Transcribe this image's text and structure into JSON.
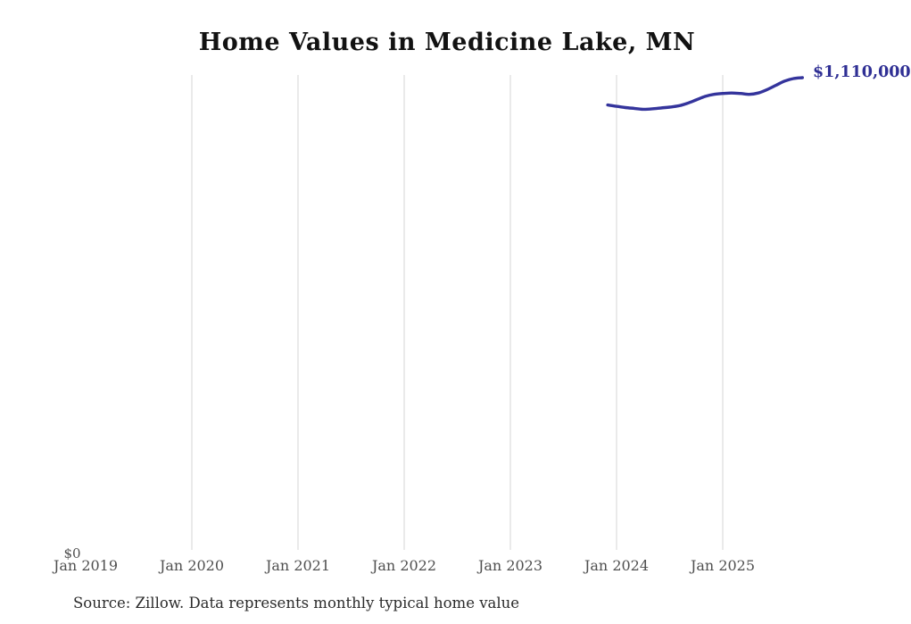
{
  "title": "Home Values in Medicine Lake, MN",
  "y_zero_label": "$0",
  "end_label": "$1,110,000",
  "source_note": "Source: Zillow. Data represents monthly typical home value",
  "colors": {
    "line": "#34349c",
    "end_label": "#2f2f94",
    "gridline": "#d5d5d5",
    "axis_text": "#4f4f4f",
    "title_text": "#121212",
    "source_text": "#2b2b2b"
  },
  "x_axis": {
    "tick_labels": [
      "Jan 2019",
      "Jan 2020",
      "Jan 2021",
      "Jan 2022",
      "Jan 2023",
      "Jan 2024",
      "Jan 2025"
    ]
  },
  "chart_data": {
    "type": "line",
    "title": "Home Values in Medicine Lake, MN",
    "xlabel": "",
    "ylabel": "",
    "x_tick_labels": [
      "Jan 2019",
      "Jan 2020",
      "Jan 2021",
      "Jan 2022",
      "Jan 2023",
      "Jan 2024",
      "Jan 2025"
    ],
    "x_range": [
      "2019-01",
      "2025-10"
    ],
    "ylim": [
      0,
      1116000
    ],
    "grid": "vertical-only",
    "legend": "none",
    "end_point_label": "$1,110,000",
    "series": [
      {
        "name": "Monthly typical home value",
        "points": [
          {
            "date": "2023-12",
            "value": 1046000
          },
          {
            "date": "2024-01",
            "value": 1043000
          },
          {
            "date": "2024-02",
            "value": 1040000
          },
          {
            "date": "2024-03",
            "value": 1038000
          },
          {
            "date": "2024-04",
            "value": 1036000
          },
          {
            "date": "2024-05",
            "value": 1037000
          },
          {
            "date": "2024-06",
            "value": 1039000
          },
          {
            "date": "2024-07",
            "value": 1041000
          },
          {
            "date": "2024-08",
            "value": 1044000
          },
          {
            "date": "2024-09",
            "value": 1050000
          },
          {
            "date": "2024-10",
            "value": 1058000
          },
          {
            "date": "2024-11",
            "value": 1066000
          },
          {
            "date": "2024-12",
            "value": 1071000
          },
          {
            "date": "2025-01",
            "value": 1073000
          },
          {
            "date": "2025-02",
            "value": 1074000
          },
          {
            "date": "2025-03",
            "value": 1073000
          },
          {
            "date": "2025-04",
            "value": 1071000
          },
          {
            "date": "2025-05",
            "value": 1074000
          },
          {
            "date": "2025-06",
            "value": 1082000
          },
          {
            "date": "2025-07",
            "value": 1092000
          },
          {
            "date": "2025-08",
            "value": 1102000
          },
          {
            "date": "2025-09",
            "value": 1108000
          },
          {
            "date": "2025-10",
            "value": 1110000
          }
        ]
      }
    ]
  }
}
